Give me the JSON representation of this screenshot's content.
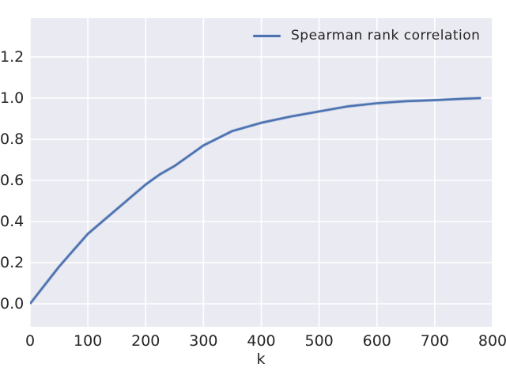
{
  "figure": {
    "xlabel": "k",
    "legend": {
      "label": "Spearman rank correlation",
      "swatch_color": "#4c72b0"
    },
    "colors": {
      "figure_bg": "#ffffff",
      "axes_bg": "#eaeaf2",
      "grid": "#ffffff",
      "line": "#4c72b0",
      "line_halo": "#9ab0d4",
      "tick_text": "#262626"
    }
  },
  "chart_data": {
    "type": "line",
    "title": "",
    "xlabel": "k",
    "ylabel": "",
    "xlim": [
      0,
      800
    ],
    "ylim": [
      -0.11,
      1.39
    ],
    "grid": true,
    "legend_position": "upper right",
    "x_ticks": [
      0,
      100,
      200,
      300,
      400,
      500,
      600,
      700,
      800
    ],
    "y_ticks": [
      "0.0",
      "0.2",
      "0.4",
      "0.6",
      "0.8",
      "1.0",
      "1.2"
    ],
    "series": [
      {
        "name": "Spearman rank correlation",
        "color": "#4c72b0",
        "x": [
          0,
          25,
          50,
          75,
          100,
          125,
          150,
          175,
          200,
          225,
          250,
          275,
          300,
          350,
          400,
          450,
          500,
          550,
          600,
          650,
          700,
          750,
          780
        ],
        "y": [
          0.0,
          0.09,
          0.18,
          0.26,
          0.34,
          0.4,
          0.46,
          0.52,
          0.58,
          0.63,
          0.67,
          0.72,
          0.77,
          0.84,
          0.88,
          0.91,
          0.935,
          0.96,
          0.975,
          0.985,
          0.99,
          0.997,
          1.0
        ]
      }
    ]
  }
}
